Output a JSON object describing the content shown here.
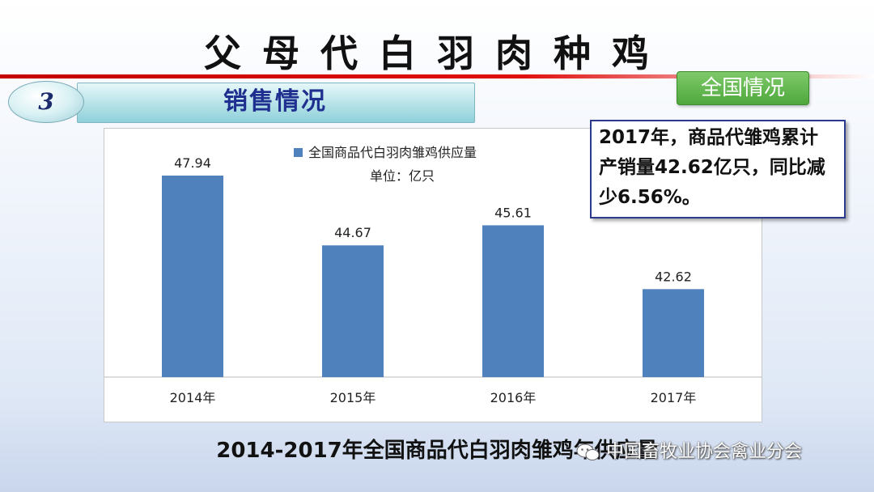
{
  "slide": {
    "title": "父母代白羽肉种鸡",
    "section_number": "3",
    "section_label": "销售情况",
    "badge": "全国情况",
    "callout": "2017年，商品代雏鸡累计产销量42.62亿只，同比减少6.56%。",
    "caption": "2014-2017年全国商品代白羽肉雏鸡年供应量",
    "watermark": "中国畜牧业协会禽业分会",
    "colors": {
      "bar": "#4f81bd",
      "red_line": "#d40000",
      "badge_green": "#4fa83c",
      "section_text": "#1f2f8f"
    }
  },
  "chart_data": {
    "type": "bar",
    "categories": [
      "2014年",
      "2015年",
      "2016年",
      "2017年"
    ],
    "series": [
      {
        "name": "全国商品代白羽肉雏鸡供应量",
        "values": [
          47.94,
          44.67,
          45.61,
          42.62
        ]
      }
    ],
    "value_labels": [
      "47.94",
      "44.67",
      "45.61",
      "42.62"
    ],
    "legend": {
      "text": "全国商品代白羽肉雏鸡供应量",
      "unit": "单位：亿只",
      "position": "top"
    },
    "ylim": [
      38.5,
      49
    ],
    "grid": false,
    "xlabel": "",
    "ylabel": ""
  }
}
